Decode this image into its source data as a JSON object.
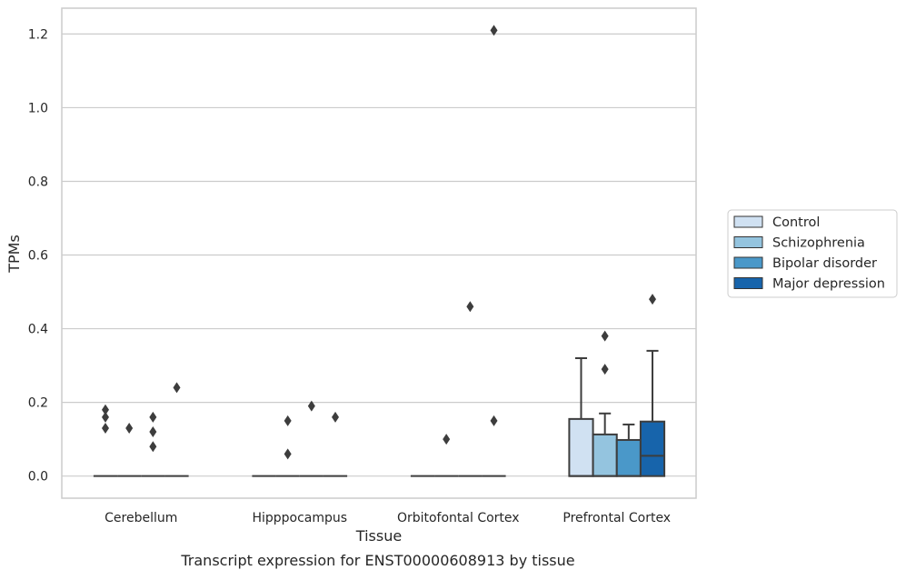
{
  "caption": "Transcript expression for ENST00000608913 by tissue",
  "chart_data": {
    "type": "box",
    "title": "",
    "xlabel": "Tissue",
    "ylabel": "TPMs",
    "ylim": [
      -0.06,
      1.27
    ],
    "yticks": [
      0.0,
      0.2,
      0.4,
      0.6,
      0.8,
      1.0,
      1.2
    ],
    "ytick_labels": [
      "0.0",
      "0.2",
      "0.4",
      "0.6",
      "0.8",
      "1.0",
      "1.2"
    ],
    "grid": "horizontal",
    "legend_position": "right",
    "categories": [
      "Cerebellum",
      "Hipppocampus",
      "Orbitofontal Cortex",
      "Prefrontal Cortex"
    ],
    "series": [
      {
        "name": "Control",
        "color": "#d0e1f2",
        "boxes": [
          {
            "whisker_low": 0,
            "q1": 0,
            "median": 0,
            "q3": 0,
            "whisker_high": 0,
            "outliers": [
              0.13,
              0.16,
              0.18
            ]
          },
          {
            "whisker_low": 0,
            "q1": 0,
            "median": 0,
            "q3": 0,
            "whisker_high": 0,
            "outliers": []
          },
          {
            "whisker_low": 0,
            "q1": 0,
            "median": 0,
            "q3": 0,
            "whisker_high": 0,
            "outliers": []
          },
          {
            "whisker_low": 0,
            "q1": 0,
            "median": 0,
            "q3": 0.155,
            "whisker_high": 0.32,
            "outliers": []
          }
        ]
      },
      {
        "name": "Schizophrenia",
        "color": "#94c4df",
        "boxes": [
          {
            "whisker_low": 0,
            "q1": 0,
            "median": 0,
            "q3": 0,
            "whisker_high": 0,
            "outliers": [
              0.13
            ]
          },
          {
            "whisker_low": 0,
            "q1": 0,
            "median": 0,
            "q3": 0,
            "whisker_high": 0,
            "outliers": [
              0.06,
              0.15
            ]
          },
          {
            "whisker_low": 0,
            "q1": 0,
            "median": 0,
            "q3": 0,
            "whisker_high": 0,
            "outliers": [
              0.1
            ]
          },
          {
            "whisker_low": 0,
            "q1": 0,
            "median": 0,
            "q3": 0.113,
            "whisker_high": 0.17,
            "outliers": [
              0.29,
              0.38
            ]
          }
        ]
      },
      {
        "name": "Bipolar disorder",
        "color": "#4a98c9",
        "boxes": [
          {
            "whisker_low": 0,
            "q1": 0,
            "median": 0,
            "q3": 0,
            "whisker_high": 0,
            "outliers": [
              0.08,
              0.12,
              0.16
            ]
          },
          {
            "whisker_low": 0,
            "q1": 0,
            "median": 0,
            "q3": 0,
            "whisker_high": 0,
            "outliers": [
              0.19
            ]
          },
          {
            "whisker_low": 0,
            "q1": 0,
            "median": 0,
            "q3": 0,
            "whisker_high": 0,
            "outliers": [
              0.46
            ]
          },
          {
            "whisker_low": 0,
            "q1": 0,
            "median": 0,
            "q3": 0.098,
            "whisker_high": 0.14,
            "outliers": []
          }
        ]
      },
      {
        "name": "Major depression",
        "color": "#1764ab",
        "boxes": [
          {
            "whisker_low": 0,
            "q1": 0,
            "median": 0,
            "q3": 0,
            "whisker_high": 0,
            "outliers": [
              0.24
            ]
          },
          {
            "whisker_low": 0,
            "q1": 0,
            "median": 0,
            "q3": 0,
            "whisker_high": 0,
            "outliers": [
              0.16
            ]
          },
          {
            "whisker_low": 0,
            "q1": 0,
            "median": 0,
            "q3": 0,
            "whisker_high": 0,
            "outliers": [
              0.15,
              1.21
            ]
          },
          {
            "whisker_low": 0,
            "q1": 0,
            "median": 0.055,
            "q3": 0.148,
            "whisker_high": 0.34,
            "outliers": [
              0.48
            ]
          }
        ]
      }
    ]
  }
}
